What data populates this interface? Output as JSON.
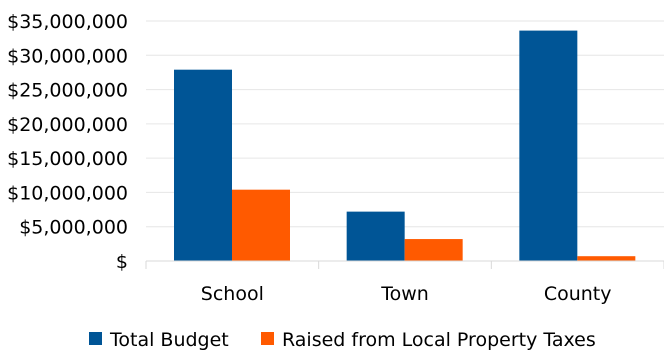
{
  "chart_data": {
    "type": "bar",
    "categories": [
      "School",
      "Town",
      "County"
    ],
    "series": [
      {
        "name": "Total Budget",
        "values": [
          27900000,
          7200000,
          33600000
        ],
        "color": "#005596"
      },
      {
        "name": "Raised from Local Property Taxes",
        "values": [
          10400000,
          3200000,
          700000
        ],
        "color": "#ff5a00"
      }
    ],
    "ylim": [
      0,
      35000000
    ],
    "yticks": [
      0,
      5000000,
      10000000,
      15000000,
      20000000,
      25000000,
      30000000,
      35000000
    ],
    "ytick_labels": [
      "$",
      "$5,000,000",
      "$10,000,000",
      "$15,000,000",
      "$20,000,000",
      "$25,000,000",
      "$30,000,000",
      "$35,000,000"
    ],
    "grid": true,
    "legend_position": "bottom",
    "title": "",
    "xlabel": "",
    "ylabel": ""
  }
}
